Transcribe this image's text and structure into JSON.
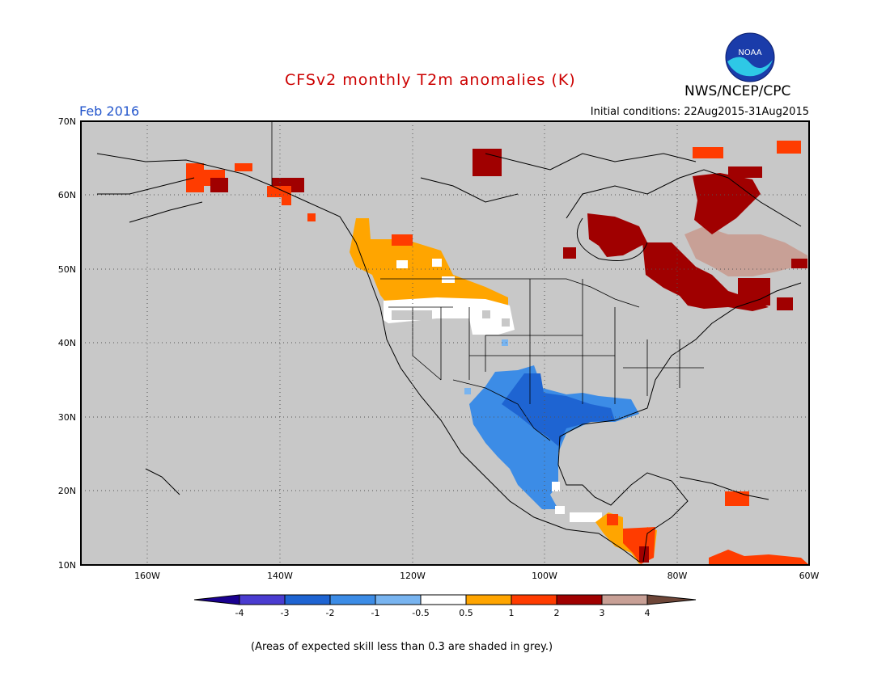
{
  "header": {
    "title": "CFSv2 monthly T2m anomalies (K)",
    "month": "Feb 2016",
    "initial_conditions": "Initial conditions: 22Aug2015-31Aug2015",
    "agency": "NWS/NCEP/CPC",
    "logo_text": "NOAA"
  },
  "map": {
    "lat_labels": [
      "70N",
      "60N",
      "50N",
      "40N",
      "30N",
      "20N",
      "10N"
    ],
    "lon_labels": [
      "160W",
      "140W",
      "120W",
      "100W",
      "80W",
      "60W"
    ],
    "background_color": "#c8c8c8",
    "grid": true
  },
  "colorbar": {
    "ticks": [
      "-4",
      "-3",
      "-2",
      "-1",
      "-0.5",
      "0.5",
      "1",
      "2",
      "3",
      "4"
    ],
    "colors": {
      "lt_m4": "#1a0090",
      "m4_m3": "#4a3cd0",
      "m3_m2": "#1e64d2",
      "m2_m1": "#3c8ce6",
      "m1_m05": "#78b4f0",
      "m05_05": "#ffffff",
      "p05_1": "#ffa500",
      "p1_2": "#ff3c00",
      "p2_3": "#a00000",
      "p3_4": "#c8a096",
      "gt_4": "#6e4638"
    }
  },
  "footer": {
    "note": "(Areas of expected skill less than 0.3 are shaded in grey.)"
  }
}
